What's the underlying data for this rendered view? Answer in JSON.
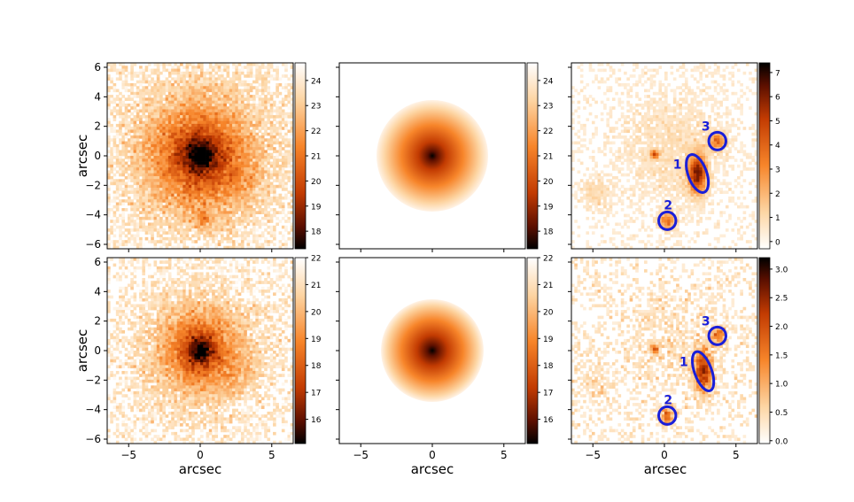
{
  "figure": {
    "axis_label": "arcsec",
    "colors": {
      "low": "#ffffff",
      "mid1": "#fdd5a3",
      "mid2": "#f7852a",
      "mid3": "#c23b02",
      "mid4": "#5b0f00",
      "high": "#000000",
      "circle": "#1a1fd9",
      "circle_label": "#1a1fd9"
    }
  },
  "chart_data": [
    {
      "type": "heatmap",
      "panel": "top-observed",
      "xlabel": "",
      "ylabel": "arcsec",
      "xlim": [
        -6.5,
        6.5
      ],
      "ylim": [
        -6.3,
        6.3
      ],
      "yticks": [
        "6",
        "4",
        "2",
        "0",
        "−2",
        "−4",
        "−6"
      ],
      "colorbar": {
        "range": [
          17.3,
          24.7
        ],
        "reversed": true,
        "ticks": [
          "24",
          "23",
          "22",
          "21",
          "20",
          "19",
          "18"
        ]
      },
      "description": "noisy galaxy image, peak at (0,0), faint blob near (0,-4.3)"
    },
    {
      "type": "heatmap",
      "panel": "top-model",
      "xlabel": "",
      "ylabel": "",
      "xlim": [
        -6.5,
        6.5
      ],
      "ylim": [
        -6.3,
        6.3
      ],
      "colorbar": {
        "range": [
          17.3,
          24.7
        ],
        "reversed": true,
        "ticks": [
          "24",
          "23",
          "22",
          "21",
          "20",
          "19",
          "18"
        ]
      },
      "description": "smooth circular model, truncated at radius ~3.9 arcsec"
    },
    {
      "type": "heatmap",
      "panel": "top-residual",
      "xlabel": "",
      "ylabel": "",
      "xlim": [
        -6.5,
        6.5
      ],
      "ylim": [
        -6.3,
        6.3
      ],
      "colorbar": {
        "range": [
          -0.3,
          7.4
        ],
        "reversed": false,
        "ticks": [
          "7",
          "6",
          "5",
          "4",
          "3",
          "2",
          "1",
          "0"
        ]
      },
      "sources": [
        {
          "label": "1",
          "x": 2.3,
          "y": -1.2,
          "rx": 0.65,
          "ry": 1.35,
          "angle": -20
        },
        {
          "label": "2",
          "x": 0.2,
          "y": -4.4,
          "rx": 0.6,
          "ry": 0.6,
          "angle": 0
        },
        {
          "label": "3",
          "x": 3.7,
          "y": 1.0,
          "rx": 0.6,
          "ry": 0.6,
          "angle": 0
        }
      ]
    },
    {
      "type": "heatmap",
      "panel": "bottom-observed",
      "xlabel": "arcsec",
      "ylabel": "arcsec",
      "xlim": [
        -6.5,
        6.5
      ],
      "ylim": [
        -6.3,
        6.3
      ],
      "xticks": [
        "−5",
        "0",
        "5"
      ],
      "yticks": [
        "6",
        "4",
        "2",
        "0",
        "−2",
        "−4",
        "−6"
      ],
      "colorbar": {
        "range": [
          15.1,
          22
        ],
        "reversed": true,
        "ticks": [
          "22",
          "21",
          "20",
          "19",
          "18",
          "17",
          "16"
        ]
      }
    },
    {
      "type": "heatmap",
      "panel": "bottom-model",
      "xlabel": "arcsec",
      "ylabel": "",
      "xlim": [
        -6.5,
        6.5
      ],
      "ylim": [
        -6.3,
        6.3
      ],
      "xticks": [
        "−5",
        "0",
        "5"
      ],
      "colorbar": {
        "range": [
          15.1,
          22
        ],
        "reversed": true,
        "ticks": [
          "22",
          "21",
          "20",
          "19",
          "18",
          "17",
          "16"
        ]
      }
    },
    {
      "type": "heatmap",
      "panel": "bottom-residual",
      "xlabel": "arcsec",
      "ylabel": "",
      "xlim": [
        -6.5,
        6.5
      ],
      "ylim": [
        -6.3,
        6.3
      ],
      "xticks": [
        "−5",
        "0",
        "5"
      ],
      "colorbar": {
        "range": [
          -0.05,
          3.2
        ],
        "reversed": false,
        "ticks": [
          "3.0",
          "2.5",
          "2.0",
          "1.5",
          "1.0",
          "0.5",
          "0.0"
        ]
      },
      "sources": [
        {
          "label": "1",
          "x": 2.7,
          "y": -1.4,
          "rx": 0.6,
          "ry": 1.4,
          "angle": -20
        },
        {
          "label": "2",
          "x": 0.2,
          "y": -4.4,
          "rx": 0.6,
          "ry": 0.6,
          "angle": 0
        },
        {
          "label": "3",
          "x": 3.7,
          "y": 1.0,
          "rx": 0.6,
          "ry": 0.6,
          "angle": 0
        }
      ]
    }
  ]
}
